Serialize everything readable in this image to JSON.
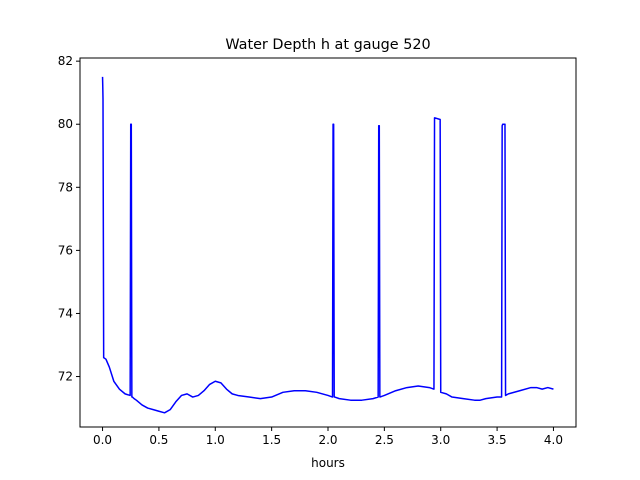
{
  "chart_data": {
    "type": "line",
    "title": "Water Depth h at gauge 520",
    "xlabel": "hours",
    "ylabel": "",
    "xlim": [
      -0.2,
      4.2
    ],
    "ylim": [
      70.4,
      82.1
    ],
    "xticks": [
      0.0,
      0.5,
      1.0,
      1.5,
      2.0,
      2.5,
      3.0,
      3.5,
      4.0
    ],
    "xtick_labels": [
      "0.0",
      "0.5",
      "1.0",
      "1.5",
      "2.0",
      "2.5",
      "3.0",
      "3.5",
      "4.0"
    ],
    "yticks": [
      72,
      74,
      76,
      78,
      80,
      82
    ],
    "ytick_labels": [
      "72",
      "74",
      "76",
      "78",
      "80",
      "82"
    ],
    "grid": false,
    "series": [
      {
        "color": "#0000ff",
        "x": [
          0.0,
          0.002,
          0.004,
          0.01,
          0.03,
          0.06,
          0.1,
          0.15,
          0.2,
          0.245,
          0.25,
          0.255,
          0.26,
          0.265,
          0.28,
          0.3,
          0.35,
          0.4,
          0.45,
          0.5,
          0.55,
          0.6,
          0.65,
          0.7,
          0.75,
          0.8,
          0.85,
          0.9,
          0.95,
          1.0,
          1.05,
          1.1,
          1.15,
          1.2,
          1.3,
          1.4,
          1.5,
          1.6,
          1.7,
          1.8,
          1.9,
          2.0,
          2.04,
          2.045,
          2.05,
          2.055,
          2.06,
          2.1,
          2.2,
          2.3,
          2.4,
          2.445,
          2.45,
          2.455,
          2.46,
          2.5,
          2.6,
          2.7,
          2.8,
          2.9,
          2.94,
          2.945,
          2.95,
          2.995,
          3.0,
          3.05,
          3.1,
          3.2,
          3.3,
          3.35,
          3.4,
          3.5,
          3.54,
          3.545,
          3.55,
          3.56,
          3.57,
          3.575,
          3.6,
          3.7,
          3.8,
          3.85,
          3.9,
          3.95,
          4.0
        ],
        "y": [
          81.5,
          81.2,
          80.8,
          72.6,
          72.55,
          72.3,
          71.85,
          71.6,
          71.45,
          71.4,
          80.0,
          80.0,
          71.35,
          71.35,
          71.3,
          71.25,
          71.1,
          71.0,
          70.95,
          70.9,
          70.85,
          70.95,
          71.2,
          71.4,
          71.45,
          71.35,
          71.4,
          71.55,
          71.75,
          71.85,
          71.8,
          71.6,
          71.45,
          71.4,
          71.35,
          71.3,
          71.35,
          71.5,
          71.55,
          71.55,
          71.5,
          71.4,
          71.35,
          80.0,
          80.0,
          71.35,
          71.35,
          71.3,
          71.25,
          71.25,
          71.3,
          71.35,
          79.95,
          79.95,
          71.35,
          71.4,
          71.55,
          71.65,
          71.7,
          71.65,
          71.6,
          80.2,
          80.2,
          80.15,
          71.5,
          71.45,
          71.35,
          71.3,
          71.25,
          71.25,
          71.3,
          71.35,
          71.35,
          79.95,
          80.0,
          80.0,
          80.0,
          71.4,
          71.45,
          71.55,
          71.65,
          71.65,
          71.6,
          71.65,
          71.6
        ]
      }
    ]
  }
}
